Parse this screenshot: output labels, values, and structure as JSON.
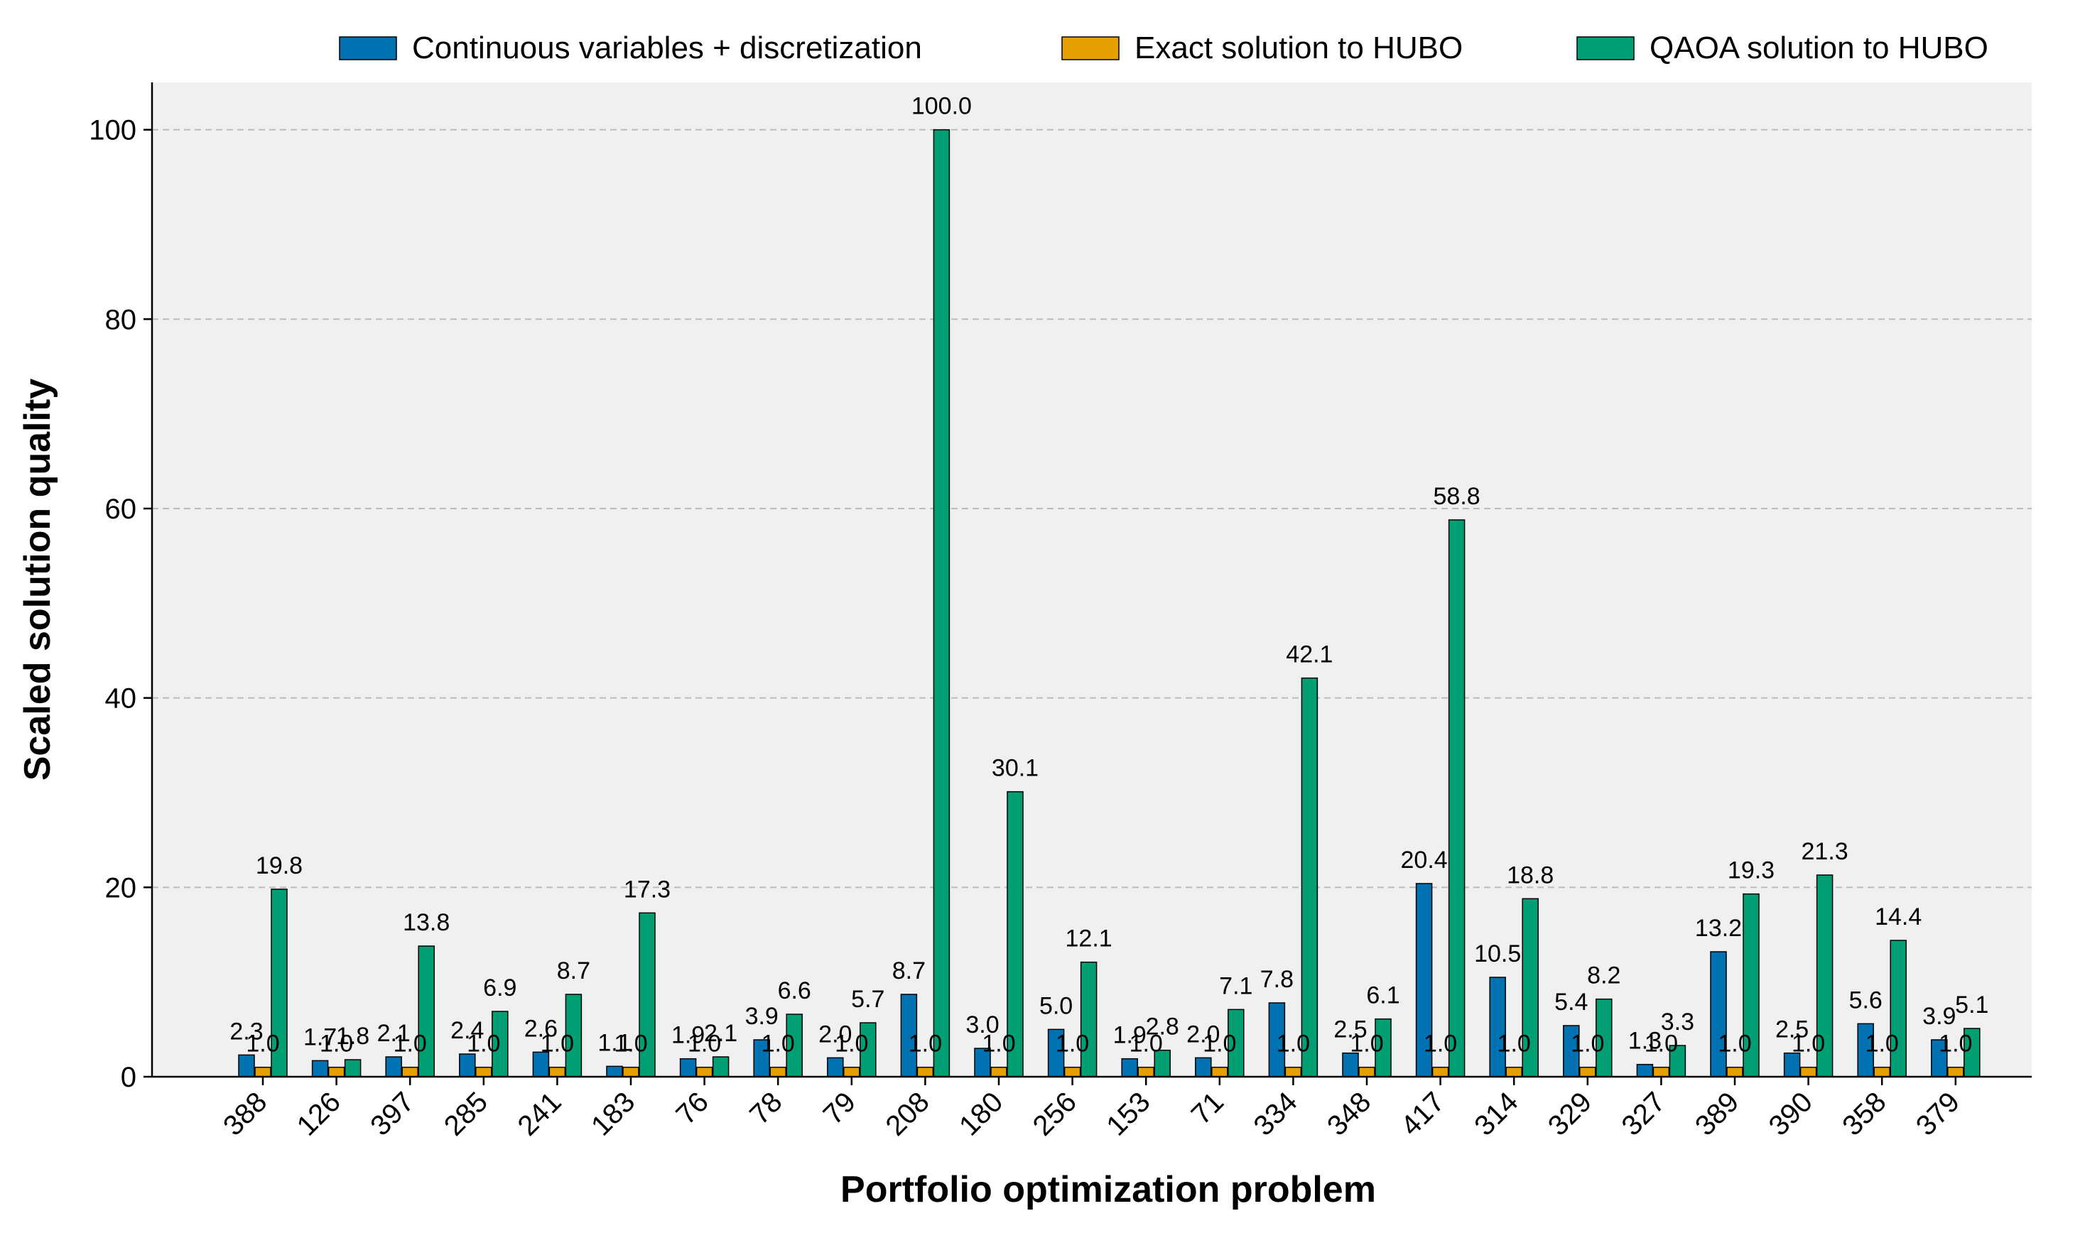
{
  "chart_data": {
    "type": "bar",
    "title": "",
    "xlabel": "Portfolio optimization problem",
    "ylabel": "Scaled solution quality",
    "ylim": [
      0,
      105
    ],
    "yticks": [
      0,
      20,
      40,
      60,
      80,
      100
    ],
    "grid": "y-dashed",
    "legend_position": "top",
    "categories": [
      "388",
      "126",
      "397",
      "285",
      "241",
      "183",
      "76",
      "78",
      "79",
      "208",
      "180",
      "256",
      "153",
      "71",
      "334",
      "348",
      "417",
      "314",
      "329",
      "327",
      "389",
      "390",
      "358",
      "379"
    ],
    "series": [
      {
        "name": "Continuous variables + discretization",
        "color": "#0072b2",
        "values": [
          2.3,
          1.7,
          2.1,
          2.4,
          2.6,
          1.1,
          1.9,
          3.9,
          2.0,
          8.7,
          3.0,
          5.0,
          1.9,
          2.0,
          7.8,
          2.5,
          20.4,
          10.5,
          5.4,
          1.3,
          13.2,
          2.5,
          5.6,
          3.9
        ],
        "labels": [
          "2.3",
          "1.7",
          "2.1",
          "2.4",
          "2.6",
          "1.1",
          "1.9",
          "3.9",
          "2.0",
          "8.7",
          "3.0",
          "5.0",
          "1.9",
          "2.0",
          "7.8",
          "2.5",
          "20.4",
          "10.5",
          "5.4",
          "1.3",
          "13.2",
          "2.5",
          "5.6",
          "3.9"
        ]
      },
      {
        "name": "Exact solution to HUBO",
        "color": "#e69f00",
        "values": [
          1,
          1,
          1,
          1,
          1,
          1,
          1,
          1,
          1,
          1,
          1,
          1,
          1,
          1,
          1,
          1,
          1,
          1,
          1,
          1,
          1,
          1,
          1,
          1
        ],
        "labels": [
          "1.0",
          "1.0",
          "1.0",
          "1.0",
          "1.0",
          "1.0",
          "1.0",
          "1.0",
          "1.0",
          "1.0",
          "1.0",
          "1.0",
          "1.0",
          "1.0",
          "1.0",
          "1.0",
          "1.0",
          "1.0",
          "1.0",
          "1.0",
          "1.0",
          "1.0",
          "1.0",
          "1.0"
        ]
      },
      {
        "name": "QAOA solution to HUBO",
        "color": "#009e73",
        "values": [
          19.8,
          1.8,
          13.8,
          6.9,
          8.7,
          17.3,
          2.1,
          6.6,
          5.7,
          100.0,
          30.1,
          12.1,
          2.8,
          7.1,
          42.1,
          6.1,
          58.8,
          18.8,
          8.2,
          3.3,
          19.3,
          21.3,
          14.4,
          5.1
        ],
        "labels": [
          "19.8",
          "1.8",
          "13.8",
          "6.9",
          "8.7",
          "17.3",
          "2.1",
          "6.6",
          "5.7",
          "100.0",
          "30.1",
          "12.1",
          "2.8",
          "7.1",
          "42.1",
          "6.1",
          "58.8",
          "18.8",
          "8.2",
          "3.3",
          "19.3",
          "21.3",
          "14.4",
          "5.1"
        ]
      }
    ],
    "colors": {
      "plot_background": "#f0f0f0",
      "grid": "#bbbbbb",
      "bar_edge": "#000000"
    }
  }
}
